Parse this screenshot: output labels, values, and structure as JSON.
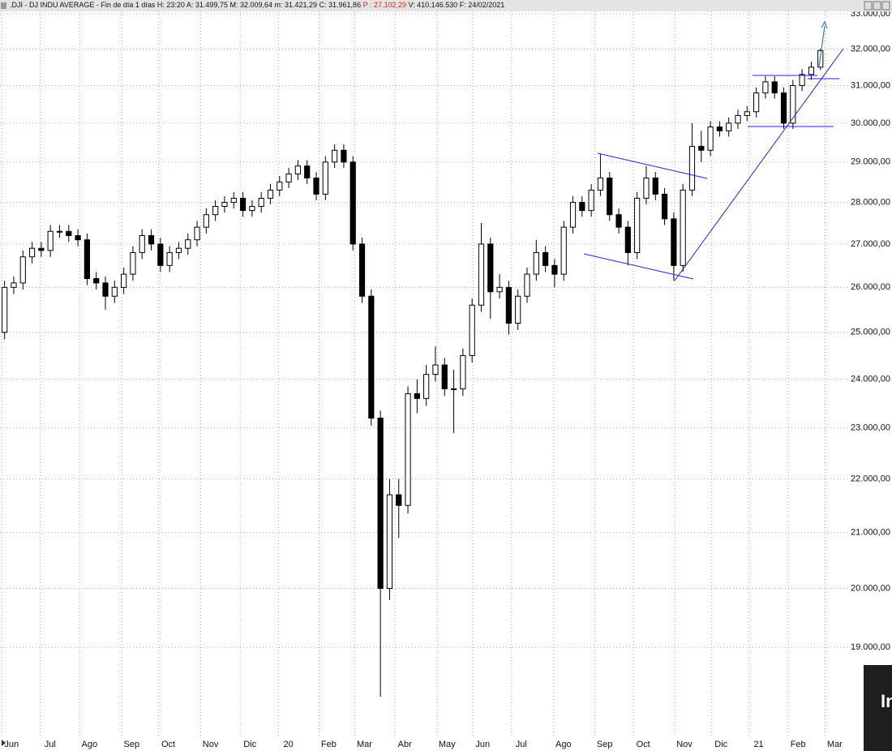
{
  "header": {
    "left": ".DJI - DJ INDU AVERAGE - Fin de día 1 días H: 23:20 A: 31.499,75 M: 32.009,64 m: 31.421,29 C: 31.961,86",
    "highlight": "P : 27.102,29",
    "right": "V: 410.146.530 F: 24/02/2021"
  },
  "watermark": "In",
  "chart_data": {
    "type": "candlestick",
    "log_scale": true,
    "grid": true,
    "color": "#000000",
    "xlim": [
      0,
      92
    ],
    "xticks": [
      {
        "value": 0.2,
        "label": "Jun"
      },
      {
        "value": 4.4,
        "label": "Jul"
      },
      {
        "value": 8.7,
        "label": "Ago"
      },
      {
        "value": 13.3,
        "label": "Sep"
      },
      {
        "value": 17.3,
        "label": "Oct"
      },
      {
        "value": 21.9,
        "label": "Nov"
      },
      {
        "value": 26.2,
        "label": "Dic"
      },
      {
        "value": 30.4,
        "label": "20"
      },
      {
        "value": 34.8,
        "label": "Feb"
      },
      {
        "value": 38.7,
        "label": "Mar"
      },
      {
        "value": 43.1,
        "label": "Abr"
      },
      {
        "value": 47.7,
        "label": "May"
      },
      {
        "value": 51.6,
        "label": "Jun"
      },
      {
        "value": 55.8,
        "label": "Jul"
      },
      {
        "value": 60.4,
        "label": "Ago"
      },
      {
        "value": 64.9,
        "label": "Sep"
      },
      {
        "value": 69.1,
        "label": "Oct"
      },
      {
        "value": 73.6,
        "label": "Nov"
      },
      {
        "value": 77.6,
        "label": "Dic"
      },
      {
        "value": 81.7,
        "label": "21"
      },
      {
        "value": 86.0,
        "label": "Feb"
      },
      {
        "value": 90.0,
        "label": "Mar"
      }
    ],
    "ylim": [
      17580,
      33070
    ],
    "yticks": [
      {
        "value": 33000,
        "label": "33.000,00"
      },
      {
        "value": 32000,
        "label": "32.000,00"
      },
      {
        "value": 31000,
        "label": "31.000,00"
      },
      {
        "value": 30000,
        "label": "30.000,00"
      },
      {
        "value": 29000,
        "label": "29.000,00"
      },
      {
        "value": 28000,
        "label": "28.000,00"
      },
      {
        "value": 27000,
        "label": "27.000,00"
      },
      {
        "value": 26000,
        "label": "26.000,00"
      },
      {
        "value": 25000,
        "label": "25.000,00"
      },
      {
        "value": 24000,
        "label": "24.000,00"
      },
      {
        "value": 23000,
        "label": "23.000,00"
      },
      {
        "value": 22000,
        "label": "22.000,00"
      },
      {
        "value": 21000,
        "label": "21.000,00"
      },
      {
        "value": 20000,
        "label": "20.000,00"
      },
      {
        "value": 19000,
        "label": "19.000,00"
      }
    ],
    "open": [
      25000,
      26000,
      26100,
      26700,
      26900,
      26850,
      27300,
      27300,
      27200,
      27100,
      26200,
      26100,
      25800,
      26000,
      26300,
      26800,
      27200,
      27000,
      26500,
      26800,
      26900,
      27100,
      27400,
      27700,
      27900,
      28000,
      28100,
      27800,
      27900,
      28100,
      28300,
      28500,
      28700,
      28900,
      28600,
      28200,
      29000,
      29300,
      29000,
      27000,
      25800,
      23200,
      20000,
      21700,
      21500,
      23700,
      23600,
      24100,
      24300,
      23800,
      23800,
      24500,
      25600,
      27000,
      25900,
      26000,
      25200,
      25800,
      26300,
      26800,
      26500,
      26300,
      27400,
      28000,
      27800,
      28300,
      28600,
      27700,
      27400,
      26800,
      28100,
      28600,
      28200,
      27600,
      26500,
      28300,
      29400,
      29300,
      29900,
      29800,
      30000,
      30200,
      30300,
      30800,
      31100,
      30800,
      30000,
      31000,
      31300,
      31500
    ],
    "high": [
      26150,
      26250,
      26850,
      27050,
      27050,
      27450,
      27450,
      27450,
      27350,
      27250,
      26350,
      26250,
      26150,
      26450,
      26950,
      27350,
      27350,
      27150,
      26950,
      27050,
      27250,
      27550,
      27850,
      28050,
      28150,
      28250,
      28250,
      28050,
      28250,
      28450,
      28650,
      28850,
      29050,
      29050,
      28750,
      29150,
      29450,
      29450,
      29150,
      27150,
      25950,
      23350,
      22000,
      22000,
      23850,
      24000,
      24300,
      24700,
      24450,
      24200,
      24650,
      25750,
      27500,
      27150,
      26300,
      26150,
      25950,
      26450,
      27100,
      26950,
      26650,
      27550,
      28150,
      28150,
      28450,
      29200,
      28750,
      27850,
      27550,
      28250,
      28900,
      28750,
      28350,
      27750,
      28450,
      30000,
      29800,
      30050,
      30050,
      30150,
      30350,
      30450,
      30950,
      31250,
      31250,
      30950,
      31150,
      31450,
      31650,
      32010
    ],
    "low": [
      24850,
      25850,
      25950,
      26550,
      26700,
      26700,
      27150,
      27050,
      26950,
      26050,
      25950,
      25500,
      25650,
      25850,
      26150,
      26650,
      26850,
      26350,
      26350,
      26650,
      26750,
      26950,
      27250,
      27550,
      27750,
      27850,
      27650,
      27650,
      27750,
      27950,
      28150,
      28350,
      28550,
      28450,
      28050,
      28050,
      28850,
      28850,
      26850,
      25650,
      23050,
      18200,
      19800,
      20900,
      21350,
      23300,
      23450,
      23950,
      23650,
      22900,
      23650,
      24350,
      25450,
      25300,
      25750,
      24950,
      25050,
      25650,
      26150,
      26350,
      26000,
      26150,
      27250,
      27650,
      27650,
      28150,
      27550,
      27250,
      26500,
      26650,
      27950,
      28050,
      27450,
      26150,
      26350,
      28150,
      29000,
      29150,
      29650,
      29650,
      29850,
      30050,
      30150,
      30650,
      30650,
      29850,
      29850,
      30850,
      31150,
      31420
    ],
    "close": [
      26000,
      26100,
      26700,
      26900,
      26850,
      27300,
      27300,
      27200,
      27100,
      26200,
      26100,
      25800,
      26000,
      26300,
      26800,
      27200,
      27000,
      26500,
      26800,
      26900,
      27100,
      27400,
      27700,
      27900,
      28000,
      28100,
      27800,
      27900,
      28100,
      28300,
      28500,
      28700,
      28900,
      28600,
      28200,
      29000,
      29300,
      29000,
      27000,
      25800,
      23200,
      20000,
      21700,
      21500,
      23700,
      23600,
      24100,
      24300,
      23800,
      23800,
      24500,
      25600,
      27000,
      25900,
      26000,
      25200,
      25800,
      26300,
      26800,
      26500,
      26300,
      27400,
      28000,
      27800,
      28300,
      28600,
      27700,
      27400,
      26800,
      28100,
      28600,
      28200,
      27600,
      26500,
      28300,
      29400,
      29300,
      29900,
      29800,
      30000,
      30200,
      30300,
      30800,
      31100,
      30800,
      30000,
      31000,
      31300,
      31500,
      31960
    ]
  }
}
